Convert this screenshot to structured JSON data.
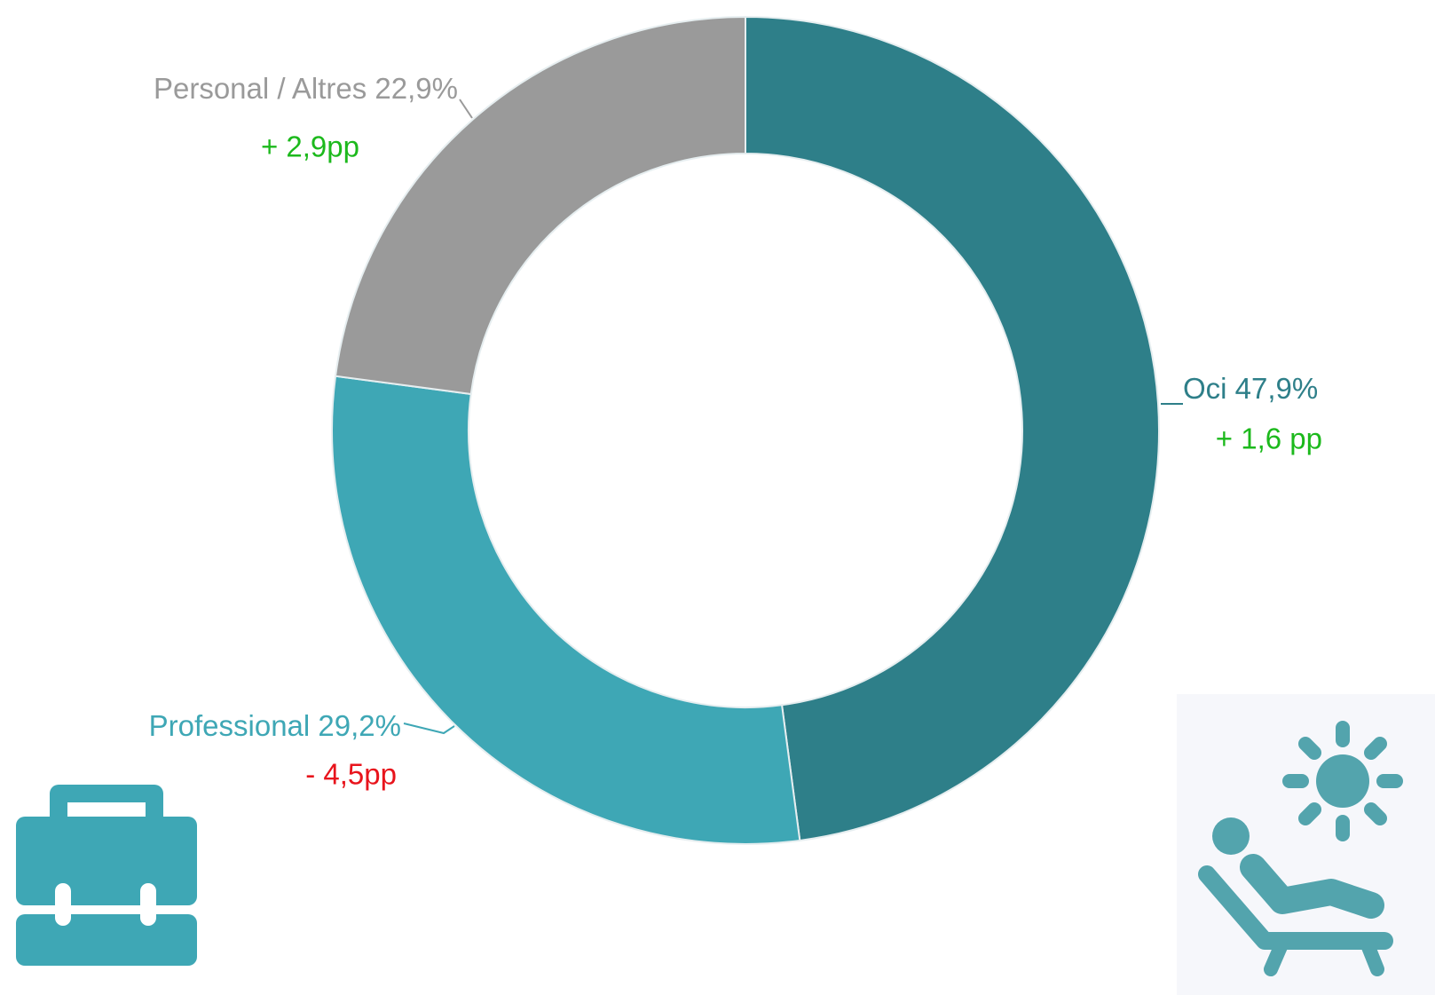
{
  "chart_data": {
    "type": "donut",
    "categories": [
      "Oci",
      "Professional",
      "Personal / Altres"
    ],
    "values": [
      47.9,
      29.2,
      22.9
    ],
    "value_labels": [
      "47,9%",
      "29,2%",
      "22,9%"
    ],
    "colors": [
      "#2e7f89",
      "#3ea7b5",
      "#9a9a9a"
    ],
    "changes": [
      1.6,
      -4.5,
      2.9
    ],
    "change_labels": [
      "+ 1,6 pp",
      "- 4,5pp",
      "+ 2,9pp"
    ]
  }
}
